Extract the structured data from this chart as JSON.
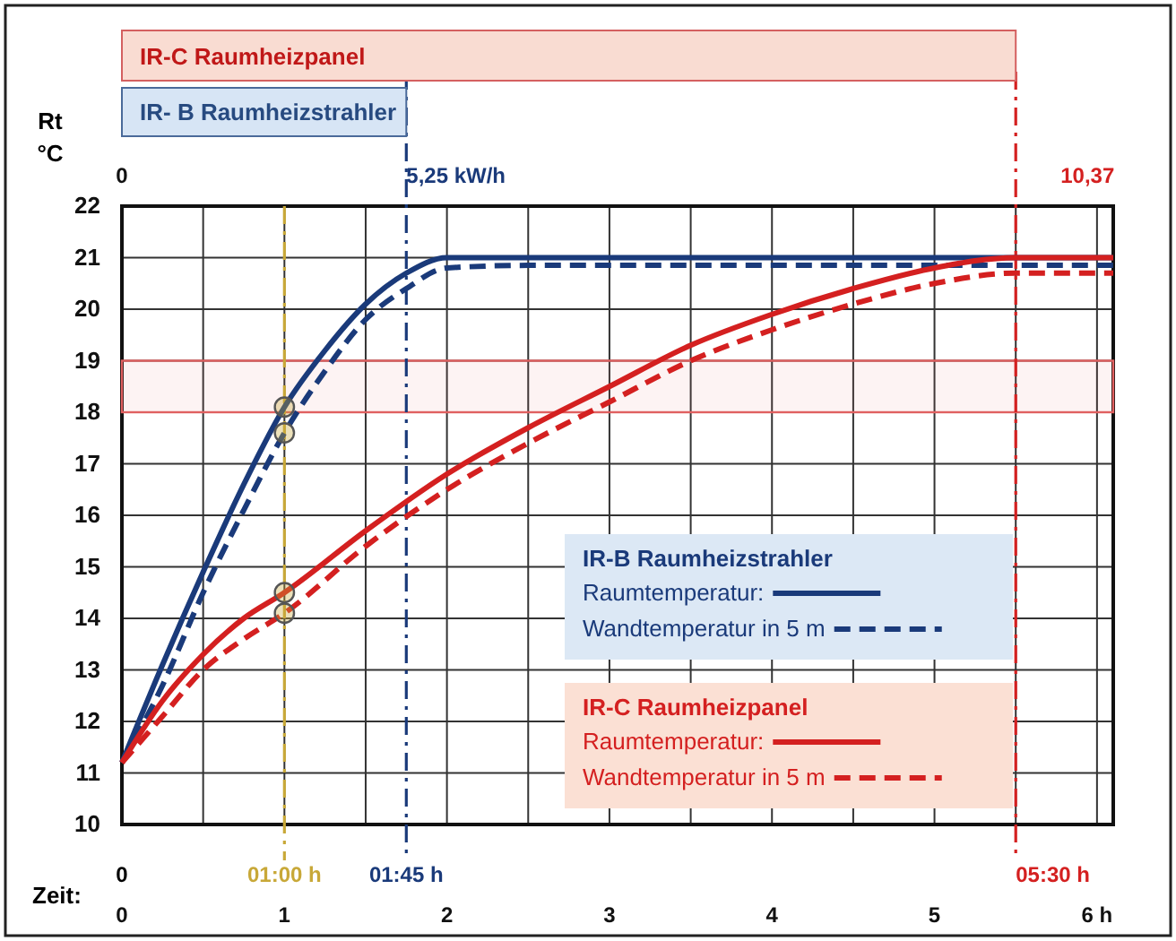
{
  "chart_data": {
    "type": "line",
    "xlabel": "Zeit:",
    "ylabel": "Rt °C",
    "xlim": [
      0,
      6.1
    ],
    "xticks": [
      0,
      1,
      2,
      3,
      4,
      5,
      {
        "value": 6,
        "label": "6 h"
      }
    ],
    "ylim": [
      10,
      22
    ],
    "yticks": [
      10,
      11,
      12,
      13,
      14,
      15,
      16,
      17,
      18,
      19,
      20,
      21,
      22
    ],
    "grid": true,
    "legend": "bottom right",
    "series": [
      {
        "name": "Raumtemperatur:",
        "color": "#1a3a7a",
        "line_style": "solid",
        "x": [
          0,
          0.25,
          0.5,
          0.75,
          1,
          1.25,
          1.5,
          1.75,
          2,
          2.5,
          3,
          4,
          5,
          6.1
        ],
        "values": [
          11.2,
          13.1,
          14.9,
          16.6,
          18.1,
          19.2,
          20.1,
          20.7,
          21.0,
          21.0,
          21.0,
          21.0,
          21.0,
          21.0
        ]
      },
      {
        "name": "Wandtemperatur  in 5 m",
        "color": "#1a3a7a",
        "line_style": "dashed",
        "x": [
          0,
          0.25,
          0.5,
          0.75,
          1,
          1.25,
          1.5,
          1.75,
          2,
          2.5,
          3,
          4,
          5,
          6.1
        ],
        "values": [
          11.2,
          12.7,
          14.5,
          16.1,
          17.6,
          18.8,
          19.8,
          20.4,
          20.8,
          20.85,
          20.85,
          20.85,
          20.85,
          20.85
        ]
      },
      {
        "name": "Raumtemperatur:",
        "color": "#d42020",
        "line_style": "solid",
        "x": [
          0,
          0.25,
          0.5,
          0.75,
          1,
          1.5,
          2,
          2.5,
          3,
          3.5,
          4,
          4.5,
          5,
          5.5,
          6.1
        ],
        "values": [
          11.2,
          12.4,
          13.3,
          14.0,
          14.5,
          15.7,
          16.8,
          17.7,
          18.5,
          19.3,
          19.9,
          20.4,
          20.8,
          21.0,
          21.0
        ]
      },
      {
        "name": "Wandtemperatur  in 5 m",
        "color": "#d42020",
        "line_style": "dashed",
        "x": [
          0,
          0.25,
          0.5,
          0.75,
          1,
          1.5,
          2,
          2.5,
          3,
          3.5,
          4,
          4.5,
          5,
          5.5,
          6.1
        ],
        "values": [
          11.2,
          12.1,
          13.0,
          13.6,
          14.1,
          15.4,
          16.5,
          17.4,
          18.2,
          19.0,
          19.6,
          20.1,
          20.5,
          20.7,
          20.7
        ]
      },
      {
        "type": "scatter",
        "marker": "circle",
        "color": "#c8a838",
        "x": [
          1,
          1,
          1,
          1
        ],
        "values": [
          18.1,
          17.6,
          14.5,
          14.1
        ]
      }
    ],
    "ref_lines": [
      {
        "axis": "x",
        "value": 1,
        "color": "#c8a838",
        "line_style": "dashed"
      },
      {
        "axis": "x",
        "value": 1.75,
        "color": "#1a3a7a",
        "line_style": "dashed"
      },
      {
        "axis": "x",
        "value": 5.5,
        "color": "#d42020",
        "line_style": "dashed"
      }
    ],
    "bands": [
      {
        "axis": "y",
        "from": 18,
        "to": 19,
        "color": "#e06060"
      }
    ],
    "annotations": [
      "IR-C Raumheizpanel",
      "IR- B Raumheizstrahler",
      "0",
      "5,25 kW/h",
      "10,37",
      "0",
      "IR-B Raumheizstrahler",
      "IR-C Raumheizpanel",
      "01:00 h",
      "01:45 h",
      "05:30 h"
    ]
  }
}
